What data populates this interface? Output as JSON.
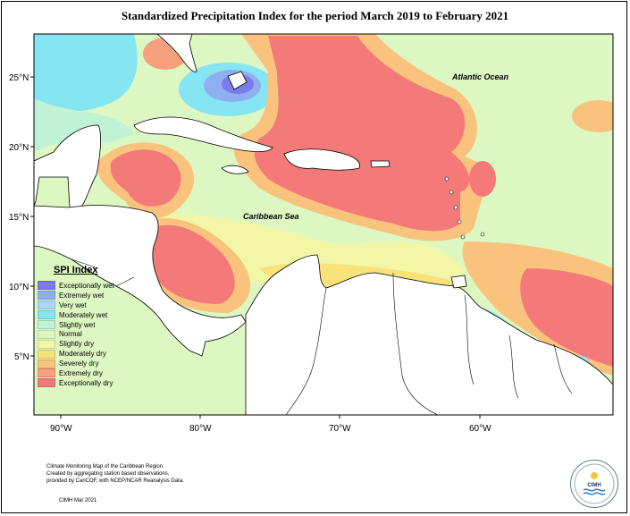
{
  "title": "Standardized Precipitation Index for the period March 2019 to February 2021",
  "axes": {
    "lat_labels": [
      "25°N",
      "20°N",
      "15°N",
      "10°N",
      "5°N"
    ],
    "lon_labels": [
      "90°W",
      "80°W",
      "70°W",
      "60°W"
    ]
  },
  "place_labels": {
    "atlantic": "Atlantic Ocean",
    "caribbean": "Caribbean Sea"
  },
  "legend": {
    "title": "SPI Index",
    "items": [
      {
        "label": "Exceptionally wet",
        "color": "#7b7bea"
      },
      {
        "label": "Extremely wet",
        "color": "#8fb0f0"
      },
      {
        "label": "Very wet",
        "color": "#a8d8f8"
      },
      {
        "label": "Moderately wet",
        "color": "#85e5f2"
      },
      {
        "label": "Slightly wet",
        "color": "#c0f2d6"
      },
      {
        "label": "Normal",
        "color": "#ddf7c2"
      },
      {
        "label": "Slightly dry",
        "color": "#f1f7a6"
      },
      {
        "label": "Moderately dry",
        "color": "#f9e27a"
      },
      {
        "label": "Severely dry",
        "color": "#f9c37d"
      },
      {
        "label": "Extremely dry",
        "color": "#f7a07e"
      },
      {
        "label": "Exceptionally dry",
        "color": "#f47a7a"
      }
    ]
  },
  "credits": {
    "line1": "Climate Monitoring Map of the Caribbean Region.",
    "line2": "Created by aggregating station based observations,",
    "line3": "provided by CariCOF, with NCEP/NCAR Reanalysis Data.",
    "date": "CIMH Mar 2021"
  },
  "logo_text": "CIMH"
}
